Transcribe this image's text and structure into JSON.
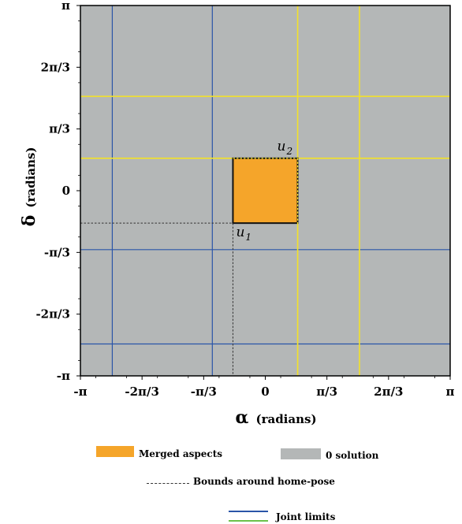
{
  "chart_data": {
    "type": "heatmap",
    "xlabel_symbol": "α",
    "xlabel_unit": "(radians)",
    "ylabel_symbol": "δ",
    "ylabel_unit": "(radians)",
    "xlim": [
      -3.14159,
      3.14159
    ],
    "ylim": [
      -3.14159,
      3.14159
    ],
    "x_ticks": [
      {
        "value": -3.14159,
        "label": "-π"
      },
      {
        "value": -2.0944,
        "label": "-2π/3"
      },
      {
        "value": -1.0472,
        "label": "-π/3"
      },
      {
        "value": 0,
        "label": "0"
      },
      {
        "value": 1.0472,
        "label": "π/3"
      },
      {
        "value": 2.0944,
        "label": "2π/3"
      },
      {
        "value": 3.14159,
        "label": "π"
      }
    ],
    "y_ticks": [
      {
        "value": 3.14159,
        "label": "π"
      },
      {
        "value": 2.0944,
        "label": "2π/3"
      },
      {
        "value": 1.0472,
        "label": "π/3"
      },
      {
        "value": 0,
        "label": "0"
      },
      {
        "value": -1.0472,
        "label": "-π/3"
      },
      {
        "value": -2.0944,
        "label": "-2π/3"
      },
      {
        "value": -3.14159,
        "label": "-π"
      }
    ],
    "background_region": {
      "label": "0 solution",
      "color": "#b4b7b7"
    },
    "merged_aspect": {
      "label": "Merged aspects",
      "color": "#f5a52a",
      "x": [
        -0.55,
        0.55
      ],
      "y": [
        -0.55,
        0.55
      ]
    },
    "points": [
      {
        "name": "u_1",
        "base": "u",
        "sub": "1",
        "x": -0.55,
        "y": -0.55
      },
      {
        "name": "u_2",
        "base": "u",
        "sub": "2",
        "x": 0.55,
        "y": 0.55
      }
    ],
    "home_bounds": {
      "x": -0.55,
      "y": -0.55,
      "x2": 0.55,
      "y2": 0.55,
      "color": "#333333"
    },
    "blue_vlines": [
      -2.6,
      -0.9
    ],
    "blue_hlines": [
      -1.0,
      -2.6
    ],
    "yellow_vlines": [
      0.55,
      1.6
    ],
    "yellow_hlines": [
      0.55,
      1.6
    ],
    "blue_color": "#2a55a8",
    "yellow_color": "#f2e12a",
    "green_color": "#6cc24a",
    "legend": {
      "merged": "Merged aspects",
      "zero": "0 solution",
      "bounds": "Bounds around home-pose",
      "joints": "Joint limits"
    }
  }
}
